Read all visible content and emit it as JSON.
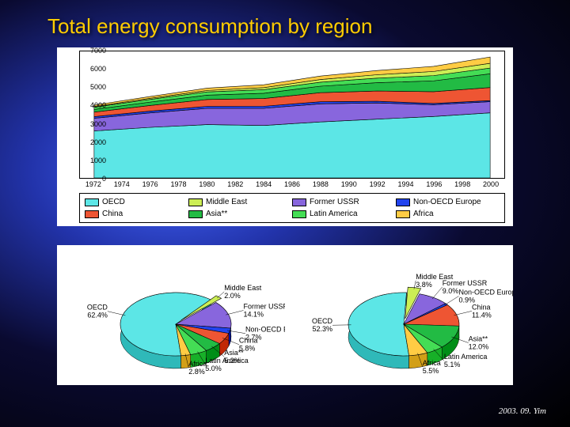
{
  "title": "Total energy consumption by region",
  "footer": "2003. 09. Yim",
  "area_chart": {
    "type": "stacked-area",
    "xlim": [
      1971,
      2001
    ],
    "ylim": [
      0,
      7000
    ],
    "yticks": [
      0,
      1000,
      2000,
      3000,
      4000,
      5000,
      6000,
      7000
    ],
    "xticks": [
      1972,
      1974,
      1976,
      1978,
      1980,
      1982,
      1984,
      1986,
      1988,
      1990,
      1992,
      1994,
      1996,
      1998,
      2000
    ],
    "background_color": "#ffffff",
    "border_color": "#000000",
    "tick_fontsize": 9,
    "series_order": [
      "OECD",
      "Former USSR",
      "Non-OECD Europe",
      "China",
      "Asia**",
      "Latin America",
      "Middle East",
      "Africa"
    ],
    "series_colors": {
      "OECD": "#5ce6e6",
      "Former USSR": "#8866dd",
      "Non-OECD Europe": "#2244ee",
      "China": "#ee5533",
      "Asia**": "#22bb44",
      "Latin America": "#44dd55",
      "Middle East": "#ccee55",
      "Africa": "#ffcc44"
    },
    "years": [
      1972,
      1976,
      1980,
      1984,
      1988,
      1992,
      1996,
      2000
    ],
    "stacked_values": {
      "OECD": [
        2600,
        2800,
        2950,
        2900,
        3100,
        3250,
        3400,
        3600
      ],
      "Former USSR": [
        700,
        800,
        900,
        950,
        1000,
        900,
        650,
        620
      ],
      "Non-OECD Europe": [
        90,
        100,
        110,
        115,
        115,
        90,
        70,
        60
      ],
      "China": [
        250,
        310,
        380,
        430,
        500,
        570,
        650,
        720
      ],
      "Asia**": [
        150,
        190,
        240,
        290,
        360,
        460,
        600,
        760
      ],
      "Latin America": [
        120,
        150,
        180,
        200,
        220,
        250,
        290,
        320
      ],
      "Middle East": [
        40,
        60,
        80,
        110,
        150,
        190,
        230,
        260
      ],
      "Africa": [
        80,
        100,
        130,
        160,
        190,
        230,
        280,
        350
      ]
    }
  },
  "legend": {
    "items": [
      {
        "label": "OECD",
        "color": "#5ce6e6"
      },
      {
        "label": "Middle East",
        "color": "#ccee55"
      },
      {
        "label": "Former USSR",
        "color": "#8866dd"
      },
      {
        "label": "Non-OECD Europe",
        "color": "#2244ee"
      },
      {
        "label": "China",
        "color": "#ee5533"
      },
      {
        "label": "Asia**",
        "color": "#22bb44"
      },
      {
        "label": "Latin America",
        "color": "#44dd55"
      },
      {
        "label": "Africa",
        "color": "#ffcc44"
      }
    ],
    "swatch_border": "#000000",
    "fontsize": 10
  },
  "pies": {
    "left": {
      "type": "pie-3d",
      "slices": [
        {
          "label": "OECD",
          "value": 62.4,
          "color": "#5ce6e6"
        },
        {
          "label": "Middle East",
          "value": 2.0,
          "color": "#ccee55"
        },
        {
          "label": "Former USSR",
          "value": 14.1,
          "color": "#8866dd"
        },
        {
          "label": "Non-OECD Europe",
          "value": 2.7,
          "color": "#2244ee"
        },
        {
          "label": "China",
          "value": 5.8,
          "color": "#ee5533"
        },
        {
          "label": "Asia**",
          "value": 5.2,
          "color": "#22bb44"
        },
        {
          "label": "Latin America",
          "value": 5.0,
          "color": "#44dd55"
        },
        {
          "label": "Africa",
          "value": 2.8,
          "color": "#ffcc44"
        }
      ],
      "label_fontsize": 9
    },
    "right": {
      "type": "pie-3d",
      "slices": [
        {
          "label": "OECD",
          "value": 52.3,
          "color": "#5ce6e6"
        },
        {
          "label": "Middle East",
          "value": 3.8,
          "color": "#ccee55"
        },
        {
          "label": "Former USSR",
          "value": 9.0,
          "color": "#8866dd"
        },
        {
          "label": "Non-OECD Europe",
          "value": 0.9,
          "color": "#2244ee"
        },
        {
          "label": "China",
          "value": 11.4,
          "color": "#ee5533"
        },
        {
          "label": "Asia**",
          "value": 12.0,
          "color": "#22bb44"
        },
        {
          "label": "Latin America",
          "value": 5.1,
          "color": "#44dd55"
        },
        {
          "label": "Africa",
          "value": 5.5,
          "color": "#ffcc44"
        }
      ],
      "label_fontsize": 9
    }
  }
}
